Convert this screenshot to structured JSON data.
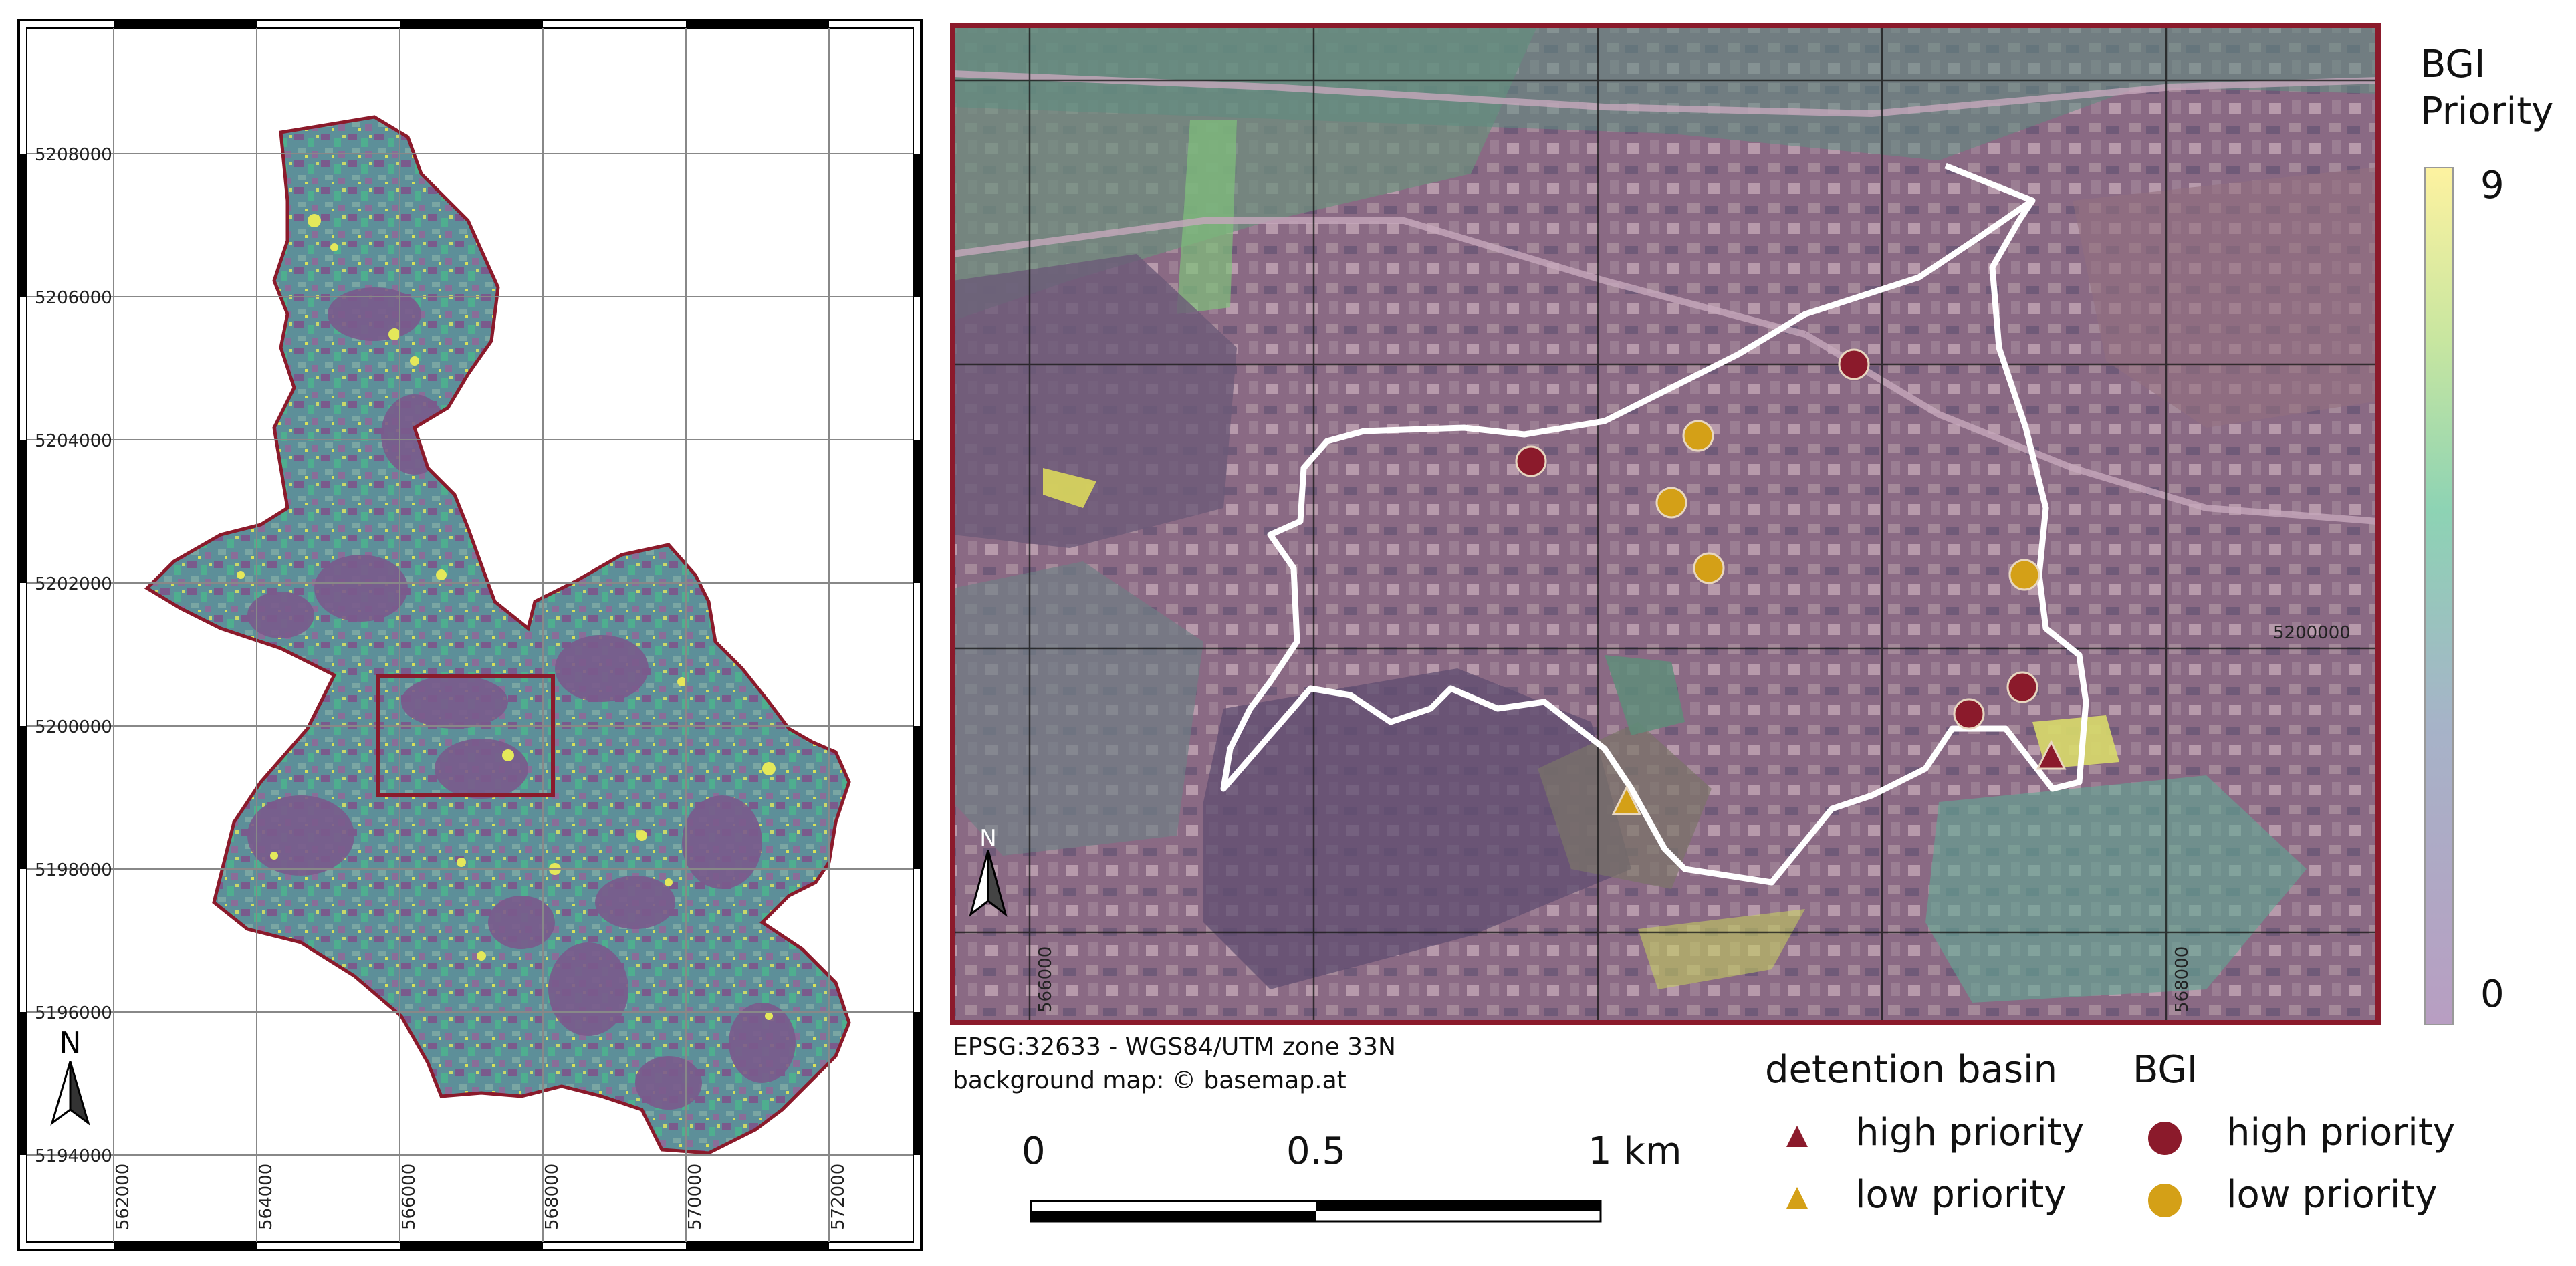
{
  "overview_map": {
    "northing_labels": [
      "5208000",
      "5206000",
      "5204000",
      "5202000",
      "5200000",
      "5198000",
      "5196000",
      "5194000"
    ],
    "easting_labels": [
      "562000",
      "564000",
      "566000",
      "568000",
      "570000",
      "572000"
    ],
    "north_arrow": "N"
  },
  "detail_map": {
    "northing_label": "5200000",
    "easting_labels": [
      "566000",
      "568000"
    ],
    "north_arrow": "N"
  },
  "colorbar": {
    "title_line1": "BGI",
    "title_line2": "Priority",
    "max_label": "9",
    "min_label": "0",
    "colors": [
      "#fde725",
      "#5ec962",
      "#21918c",
      "#3b528b",
      "#440154"
    ]
  },
  "credits": {
    "crs": "EPSG:32633 - WGS84/UTM zone 33N",
    "background": "background map: © basemap.at"
  },
  "scalebar": {
    "labels": [
      "0",
      "0.5",
      "1 km"
    ]
  },
  "legend": {
    "detention_title": "detention basin",
    "bgi_title": "BGI",
    "high": "high priority",
    "low": "low priority",
    "high_color": "#8b1a2b",
    "low_color": "#d4a017"
  }
}
